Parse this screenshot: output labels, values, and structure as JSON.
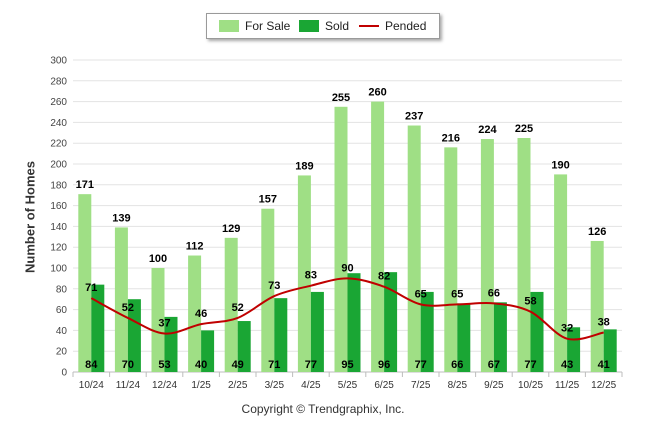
{
  "chart_data": {
    "type": "bar",
    "ylabel": "Number of Homes",
    "xlabel": "",
    "ylim": [
      0,
      300
    ],
    "yticks": [
      "0",
      "20",
      "40",
      "60",
      "80",
      "100",
      "120",
      "140",
      "160",
      "180",
      "200",
      "220",
      "240",
      "260",
      "280",
      "300"
    ],
    "grid": true,
    "legend_position": "top-center",
    "categories": [
      "10/24",
      "11/24",
      "12/24",
      "1/25",
      "2/25",
      "3/25",
      "4/25",
      "5/25",
      "6/25",
      "7/25",
      "8/25",
      "9/25",
      "10/25",
      "11/25",
      "12/25"
    ],
    "series": [
      {
        "name": "For Sale",
        "type": "bar",
        "color": "#9fdf85",
        "values": [
          171,
          139,
          100,
          112,
          129,
          157,
          189,
          255,
          260,
          237,
          216,
          224,
          225,
          190,
          126
        ]
      },
      {
        "name": "Sold",
        "type": "bar",
        "color": "#1aa634",
        "values": [
          84,
          70,
          53,
          40,
          49,
          71,
          77,
          95,
          96,
          77,
          66,
          67,
          77,
          43,
          41
        ]
      },
      {
        "name": "Pended",
        "type": "line",
        "color": "#c00000",
        "values": [
          71,
          52,
          37,
          46,
          52,
          73,
          83,
          90,
          82,
          65,
          65,
          66,
          58,
          32,
          38
        ]
      }
    ]
  },
  "legend": {
    "for_sale": "For Sale",
    "sold": "Sold",
    "pended": "Pended"
  },
  "footer": {
    "copyright": "Copyright © Trendgraphix, Inc."
  }
}
